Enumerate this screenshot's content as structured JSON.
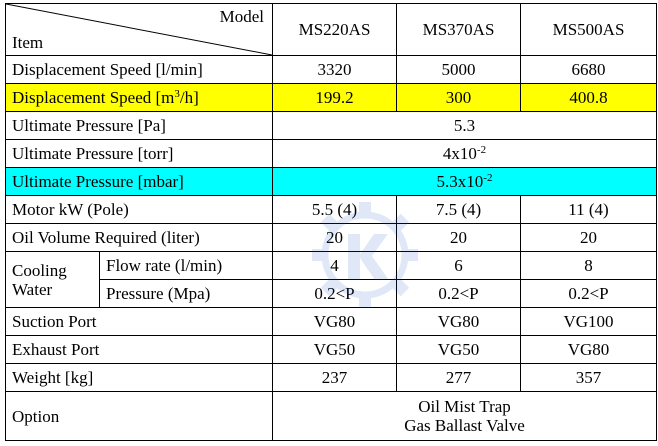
{
  "header": {
    "model_label": "Model",
    "item_label": "Item",
    "models": [
      "MS220AS",
      "MS370AS",
      "MS500AS"
    ]
  },
  "rows": {
    "displacement_lmin": {
      "label": "Displacement Speed  [l/min]",
      "values": [
        "3320",
        "5000",
        "6680"
      ]
    },
    "displacement_m3h": {
      "label_pre": "Displacement Speed [m",
      "label_sup": "3",
      "label_post": "/h]",
      "values": [
        "199.2",
        "300",
        "400.8"
      ]
    },
    "ultimate_pa": {
      "label": "Ultimate Pressure [Pa]",
      "value": "5.3"
    },
    "ultimate_torr": {
      "label": "Ultimate Pressure [torr]",
      "value_base": "4x10",
      "value_exp": "-2"
    },
    "ultimate_mbar": {
      "label": "Ultimate Pressure [mbar]",
      "value_base": "5.3x10",
      "value_exp": "-2"
    },
    "motor": {
      "label": "Motor kW (Pole)",
      "values": [
        "5.5 (4)",
        "7.5 (4)",
        "11 (4)"
      ]
    },
    "oil": {
      "label": "Oil Volume Required (liter)",
      "values": [
        "20",
        "20",
        "20"
      ]
    },
    "cooling": {
      "label_line1": "Cooling",
      "label_line2": "Water",
      "flow": {
        "label": "Flow rate (l/min)",
        "values": [
          "4",
          "6",
          "8"
        ]
      },
      "pressure": {
        "label": "Pressure (Mpa)",
        "values": [
          "0.2<P",
          "0.2<P",
          "0.2<P"
        ]
      }
    },
    "suction": {
      "label": "Suction Port",
      "values": [
        "VG80",
        "VG80",
        "VG100"
      ]
    },
    "exhaust": {
      "label": "Exhaust Port",
      "values": [
        "VG50",
        "VG50",
        "VG80"
      ]
    },
    "weight": {
      "label": "Weight [kg]",
      "values": [
        "237",
        "277",
        "357"
      ]
    },
    "option": {
      "label": "Option",
      "line1": "Oil Mist Trap",
      "line2": "Gas Ballast Valve"
    }
  },
  "colors": {
    "highlight_yellow": "#ffff00",
    "highlight_cyan": "#00ffff"
  },
  "watermark_icon": "gear-logo-icon"
}
